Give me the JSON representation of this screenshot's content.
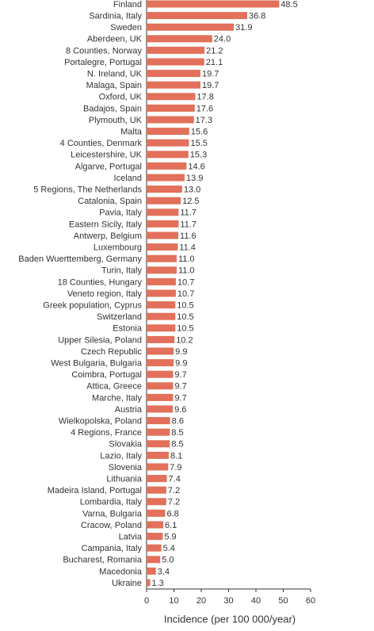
{
  "chart_data": {
    "type": "bar",
    "orientation": "horizontal",
    "x_label": "Incidence (per 100 000/year)",
    "categories": [
      "Finland",
      "Sardinia, Italy",
      "Sweden",
      "Aberdeen, UK",
      "8 Counties, Norway",
      "Portalegre, Portugal",
      "N. Ireland, UK",
      "Malaga, Spain",
      "Oxford, UK",
      "Badajos, Spain",
      "Plymouth, UK",
      "Malta",
      "4 Counties, Denmark",
      "Leicestershire, UK",
      "Algarve, Portugal",
      "Iceland",
      "5 Regions, The Netherlands",
      "Catalonia, Spain",
      "Pavia, Italy",
      "Eastern Sicily, Italy",
      "Antwerp, Belgium",
      "Luxembourg",
      "Baden Wuerttemberg, Germany",
      "Turin, Italy",
      "18 Counties, Hungary",
      "Veneto region, Italy",
      "Greek population, Cyprus",
      "Switzerland",
      "Estonia",
      "Upper Silesia, Poland",
      "Czech Republic",
      "West Bulgaria, Bulgaria",
      "Coimbra, Portugal",
      "Attica, Greece",
      "Marche, Italy",
      "Austria",
      "Wielkopolska, Poland",
      "4 Regions, France",
      "Slovakia",
      "Lazio, Italy",
      "Slovenia",
      "Lithuania",
      "Madeira Island, Portugal",
      "Lombardia, Italy",
      "Varna, Bulgaria",
      "Cracow, Poland",
      "Latvia",
      "Campania, Italy",
      "Bucharest, Romania",
      "Macedonia",
      "Ukraine"
    ],
    "values": [
      48.5,
      36.8,
      31.9,
      24.0,
      21.2,
      21.1,
      19.7,
      19.7,
      17.8,
      17.6,
      17.3,
      15.6,
      15.5,
      15.3,
      14.6,
      13.9,
      13.0,
      12.5,
      11.7,
      11.7,
      11.6,
      11.4,
      11.0,
      11.0,
      10.7,
      10.7,
      10.5,
      10.5,
      10.5,
      10.2,
      9.9,
      9.9,
      9.7,
      9.7,
      9.7,
      9.6,
      8.6,
      8.5,
      8.5,
      8.1,
      7.9,
      7.4,
      7.2,
      7.2,
      6.8,
      6.1,
      5.9,
      5.4,
      5.0,
      3.4,
      1.3
    ],
    "value_labels": [
      "48.5",
      "36.8",
      "31.9",
      "24.0",
      "21.2",
      "21.1",
      "19.7",
      "19.7",
      "17.8",
      "17.6",
      "17.3",
      "15.6",
      "15.5",
      "15.3",
      "14.6",
      "13.9",
      "13.0",
      "12.5",
      "11.7",
      "11.7",
      "11.6",
      "11.4",
      "11.0",
      "11.0",
      "10.7",
      "10.7",
      "10.5",
      "10.5",
      "10.5",
      "10.2",
      "9.9",
      "9.9",
      "9.7",
      "9.7",
      "9.7",
      "9.6",
      "8.6",
      "8.5",
      "8.5",
      "8.1",
      "7.9",
      "7.4",
      "7.2",
      "7.2",
      "6.8",
      "6.1",
      "5.9",
      "5.4",
      "5.0",
      "3.4",
      "1.3"
    ],
    "color": "#e2705a",
    "xlim": [
      0,
      60
    ],
    "xticks": [
      0,
      10,
      20,
      30,
      40,
      50,
      60
    ]
  }
}
